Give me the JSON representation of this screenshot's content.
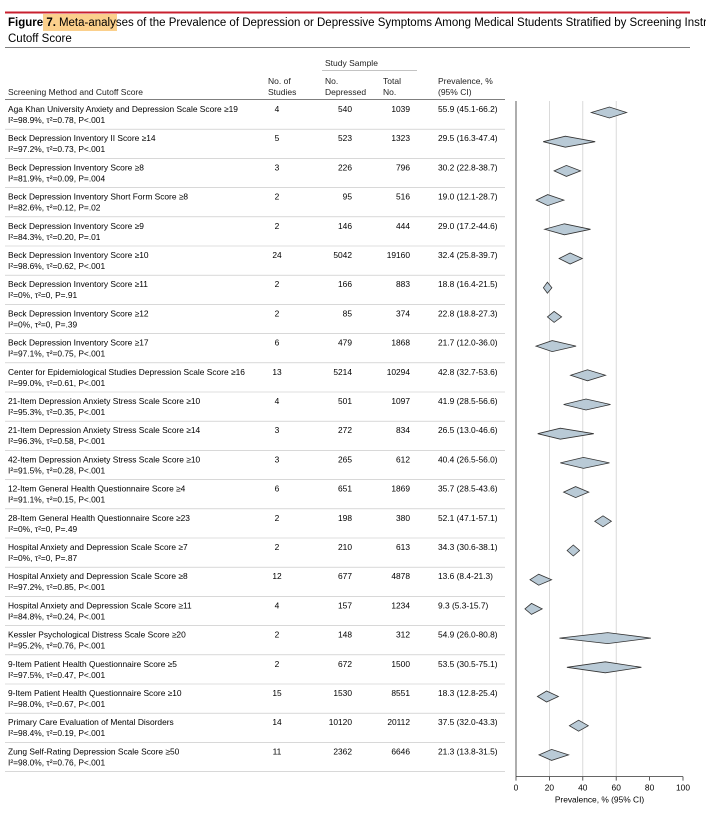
{
  "figure": {
    "label": "Figure 7.",
    "highlight": "Meta-analyses",
    "title_rest_line1": "of the Prevalence of Depression or Depressive Symptoms Among Medical Students Stratified by Screening Instrument and",
    "title_line2": "Cutoff Score"
  },
  "headers": {
    "method": "Screening Method and Cutoff Score",
    "studies_1": "No. of",
    "studies_2": "Studies",
    "study_sample": "Study Sample",
    "depressed_1": "No.",
    "depressed_2": "Depressed",
    "total_1": "Total",
    "total_2": "No.",
    "prevalence_1": "Prevalence, %",
    "prevalence_2": "(95% CI)"
  },
  "colors": {
    "diamond_fill": "#b9cad6",
    "diamond_stroke": "#333333",
    "rule": "#c0c0c0",
    "title_rule": "#c8202f",
    "highlight": "#fbd08c"
  },
  "chart_data": {
    "type": "forest",
    "xlabel": "Prevalence, % (95% CI)",
    "xlim": [
      0,
      100
    ],
    "xticks": [
      0,
      20,
      40,
      60,
      80,
      100
    ],
    "gridlines_at": [
      20,
      40,
      60
    ],
    "rows": [
      {
        "name": "Aga Khan University Anxiety and Depression Scale Score ≥19",
        "stats": "I²=98.9%, τ²=0.78, P<.001",
        "studies": "4",
        "depressed": "540",
        "total": "1039",
        "prev_text": "55.9 (45.1-66.2)",
        "est": 55.9,
        "lo": 45.1,
        "hi": 66.2
      },
      {
        "name": "Beck Depression Inventory II Score ≥14",
        "stats": "I²=97.2%, τ²=0.73, P<.001",
        "studies": "5",
        "depressed": "523",
        "total": "1323",
        "prev_text": "29.5 (16.3-47.4)",
        "est": 29.5,
        "lo": 16.3,
        "hi": 47.4
      },
      {
        "name": "Beck Depression Inventory Score ≥8",
        "stats": "I²=81.9%, τ²=0.09, P=.004",
        "studies": "3",
        "depressed": "226",
        "total": "796",
        "prev_text": "30.2 (22.8-38.7)",
        "est": 30.2,
        "lo": 22.8,
        "hi": 38.7
      },
      {
        "name": "Beck Depression Inventory Short Form Score ≥8",
        "stats": "I²=82.6%, τ²=0.12, P=.02",
        "studies": "2",
        "depressed": "95",
        "total": "516",
        "prev_text": "19.0 (12.1-28.7)",
        "est": 19.0,
        "lo": 12.1,
        "hi": 28.7
      },
      {
        "name": "Beck Depression Inventory Score ≥9",
        "stats": "I²=84.3%, τ²=0.20, P=.01",
        "studies": "2",
        "depressed": "146",
        "total": "444",
        "prev_text": "29.0 (17.2-44.6)",
        "est": 29.0,
        "lo": 17.2,
        "hi": 44.6
      },
      {
        "name": "Beck Depression Inventory Score ≥10",
        "stats": "I²=98.6%, τ²=0.62, P<.001",
        "studies": "24",
        "depressed": "5042",
        "total": "19160",
        "prev_text": "32.4 (25.8-39.7)",
        "est": 32.4,
        "lo": 25.8,
        "hi": 39.7
      },
      {
        "name": "Beck Depression Inventory Score ≥11",
        "stats": "I²=0%, τ²=0, P=.91",
        "studies": "2",
        "depressed": "166",
        "total": "883",
        "prev_text": "18.8 (16.4-21.5)",
        "est": 18.8,
        "lo": 16.4,
        "hi": 21.5
      },
      {
        "name": "Beck Depression Inventory Score ≥12",
        "stats": "I²=0%, τ²=0, P=.39",
        "studies": "2",
        "depressed": "85",
        "total": "374",
        "prev_text": "22.8 (18.8-27.3)",
        "est": 22.8,
        "lo": 18.8,
        "hi": 27.3
      },
      {
        "name": "Beck Depression Inventory Score ≥17",
        "stats": "I²=97.1%, τ²=0.75, P<.001",
        "studies": "6",
        "depressed": "479",
        "total": "1868",
        "prev_text": "21.7 (12.0-36.0)",
        "est": 21.7,
        "lo": 12.0,
        "hi": 36.0
      },
      {
        "name": "Center for Epidemiological Studies Depression Scale Score ≥16",
        "stats": "I²=99.0%, τ²=0.61, P<.001",
        "studies": "13",
        "depressed": "5214",
        "total": "10294",
        "prev_text": "42.8 (32.7-53.6)",
        "est": 42.8,
        "lo": 32.7,
        "hi": 53.6
      },
      {
        "name": "21-Item Depression Anxiety Stress Scale Score ≥10",
        "stats": "I²=95.3%, τ²=0.35, P<.001",
        "studies": "4",
        "depressed": "501",
        "total": "1097",
        "prev_text": "41.9 (28.5-56.6)",
        "est": 41.9,
        "lo": 28.5,
        "hi": 56.6
      },
      {
        "name": "21-Item Depression Anxiety Stress Scale Score ≥14",
        "stats": "I²=96.3%, τ²=0.58, P<.001",
        "studies": "3",
        "depressed": "272",
        "total": "834",
        "prev_text": "26.5 (13.0-46.6)",
        "est": 26.5,
        "lo": 13.0,
        "hi": 46.6
      },
      {
        "name": "42-Item Depression Anxiety Stress Scale Score ≥10",
        "stats": "I²=91.5%, τ²=0.28, P<.001",
        "studies": "3",
        "depressed": "265",
        "total": "612",
        "prev_text": "40.4 (26.5-56.0)",
        "est": 40.4,
        "lo": 26.5,
        "hi": 56.0
      },
      {
        "name": "12-Item General Health Questionnaire Score ≥4",
        "stats": "I²=91.1%, τ²=0.15, P<.001",
        "studies": "6",
        "depressed": "651",
        "total": "1869",
        "prev_text": "35.7 (28.5-43.6)",
        "est": 35.7,
        "lo": 28.5,
        "hi": 43.6
      },
      {
        "name": "28-Item General Health Questionnaire Score ≥23",
        "stats": "I²=0%, τ²=0, P=.49",
        "studies": "2",
        "depressed": "198",
        "total": "380",
        "prev_text": "52.1 (47.1-57.1)",
        "est": 52.1,
        "lo": 47.1,
        "hi": 57.1
      },
      {
        "name": "Hospital Anxiety and Depression Scale Score ≥7",
        "stats": "I²=0%, τ²=0, P=.87",
        "studies": "2",
        "depressed": "210",
        "total": "613",
        "prev_text": "34.3 (30.6-38.1)",
        "est": 34.3,
        "lo": 30.6,
        "hi": 38.1
      },
      {
        "name": "Hospital Anxiety and Depression Scale Score ≥8",
        "stats": "I²=97.2%, τ²=0.85, P<.001",
        "studies": "12",
        "depressed": "677",
        "total": "4878",
        "prev_text": "13.6 (8.4-21.3)",
        "est": 13.6,
        "lo": 8.4,
        "hi": 21.3
      },
      {
        "name": "Hospital Anxiety and Depression Scale Score ≥11",
        "stats": "I²=84.8%, τ²=0.24, P<.001",
        "studies": "4",
        "depressed": "157",
        "total": "1234",
        "prev_text": "9.3 (5.3-15.7)",
        "est": 9.3,
        "lo": 5.3,
        "hi": 15.7
      },
      {
        "name": "Kessler Psychological Distress Scale Score ≥20",
        "stats": "I²=95.2%, τ²=0.76, P<.001",
        "studies": "2",
        "depressed": "148",
        "total": "312",
        "prev_text": "54.9 (26.0-80.8)",
        "est": 54.9,
        "lo": 26.0,
        "hi": 80.8
      },
      {
        "name": "9-Item Patient Health Questionnaire Score ≥5",
        "stats": "I²=97.5%, τ²=0.47, P<.001",
        "studies": "2",
        "depressed": "672",
        "total": "1500",
        "prev_text": "53.5 (30.5-75.1)",
        "est": 53.5,
        "lo": 30.5,
        "hi": 75.1
      },
      {
        "name": "9-Item Patient Health Questionnaire Score ≥10",
        "stats": "I²=98.0%, τ²=0.67, P<.001",
        "studies": "15",
        "depressed": "1530",
        "total": "8551",
        "prev_text": "18.3 (12.8-25.4)",
        "est": 18.3,
        "lo": 12.8,
        "hi": 25.4
      },
      {
        "name": "Primary Care Evaluation of Mental Disorders",
        "stats": "I²=98.4%, τ²=0.19, P<.001",
        "studies": "14",
        "depressed": "10120",
        "total": "20112",
        "prev_text": "37.5 (32.0-43.3)",
        "est": 37.5,
        "lo": 32.0,
        "hi": 43.3
      },
      {
        "name": "Zung Self-Rating Depression Scale Score ≥50",
        "stats": "I²=98.0%, τ²=0.76, P<.001",
        "studies": "11",
        "depressed": "2362",
        "total": "6646",
        "prev_text": "21.3 (13.8-31.5)",
        "est": 21.3,
        "lo": 13.8,
        "hi": 31.5
      }
    ]
  }
}
